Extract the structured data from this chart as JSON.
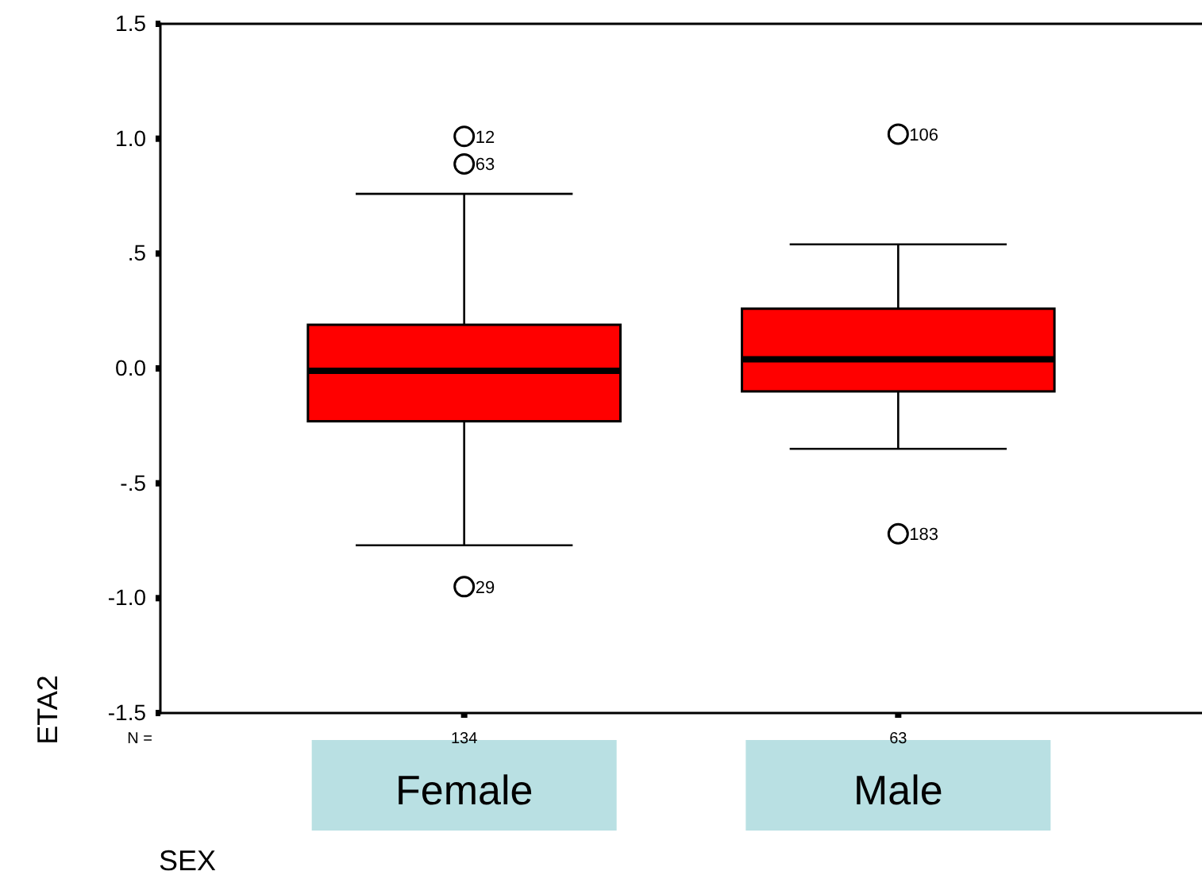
{
  "chart_data": {
    "type": "box",
    "xlabel": "SEX",
    "ylabel": "ETA2",
    "categories": [
      "Female",
      "Male"
    ],
    "series": [
      {
        "color": "#ff0000",
        "boxes": [
          {
            "low": -0.77,
            "q1": -0.23,
            "median": -0.01,
            "q3": 0.19,
            "high": 0.76,
            "outliers": [
              1.01,
              0.89,
              -0.95
            ]
          },
          {
            "low": -0.35,
            "q1": -0.1,
            "median": 0.04,
            "q3": 0.26,
            "high": 0.54,
            "outliers": [
              1.02,
              -0.72
            ]
          }
        ]
      }
    ],
    "ylim": [
      -1.5,
      1.5
    ],
    "yticks": [
      {
        "value": -1.5,
        "label": "-1.5"
      },
      {
        "value": -1.0,
        "label": "-1.0"
      },
      {
        "value": -0.5,
        "label": "-.5"
      },
      {
        "value": 0.0,
        "label": "0.0"
      },
      {
        "value": 0.5,
        "label": ".5"
      },
      {
        "value": 1.0,
        "label": "1.0"
      },
      {
        "value": 1.5,
        "label": "1.5"
      }
    ],
    "annotations": [
      "12",
      "63",
      "29",
      "106",
      "183",
      "N =",
      "134",
      "63"
    ],
    "grid": false,
    "legend": false
  }
}
